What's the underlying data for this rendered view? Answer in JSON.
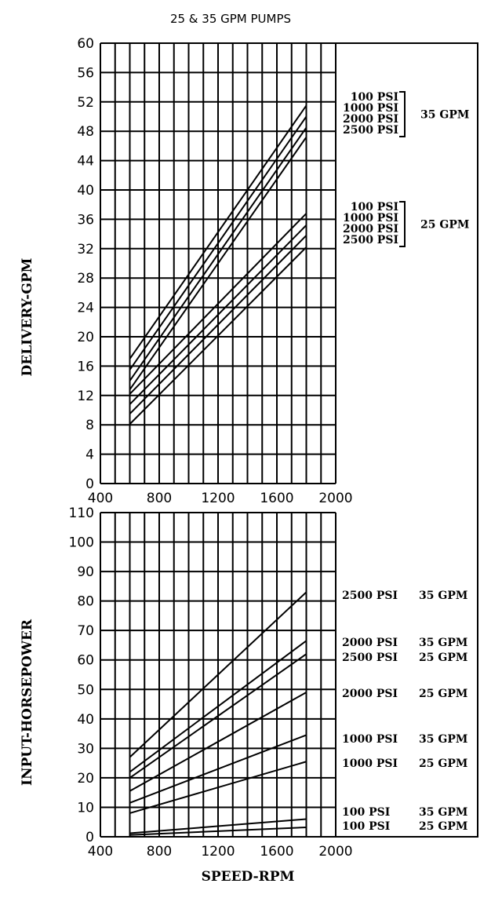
{
  "title": "25 & 35 GPM PUMPS",
  "chart_data": [
    {
      "type": "line",
      "xlabel": "",
      "ylabel": "DELIVERY-GPM",
      "xlim": [
        400,
        2000
      ],
      "ylim": [
        0,
        60
      ],
      "x_ticks": [
        "400",
        "800",
        "1200",
        "1600",
        "2000"
      ],
      "y_ticks": [
        "0",
        "4",
        "8",
        "12",
        "16",
        "20",
        "24",
        "28",
        "32",
        "36",
        "40",
        "44",
        "48",
        "52",
        "56",
        "60"
      ],
      "grid": true,
      "series": [
        {
          "x": [
            600,
            1800
          ],
          "y": [
            17,
            51.5
          ]
        },
        {
          "x": [
            600,
            1800
          ],
          "y": [
            15.5,
            50
          ]
        },
        {
          "x": [
            600,
            1800
          ],
          "y": [
            14,
            48.5
          ]
        },
        {
          "x": [
            600,
            1800
          ],
          "y": [
            12.8,
            47.2
          ]
        },
        {
          "x": [
            600,
            1800
          ],
          "y": [
            12.2,
            36.8
          ]
        },
        {
          "x": [
            600,
            1800
          ],
          "y": [
            10.8,
            35.2
          ]
        },
        {
          "x": [
            600,
            1800
          ],
          "y": [
            9.5,
            33.8
          ]
        },
        {
          "x": [
            600,
            1800
          ],
          "y": [
            8.1,
            32.2
          ]
        }
      ],
      "legend_groups": [
        {
          "labels": [
            "100 PSI",
            "1000 PSI",
            "2000 PSI",
            "2500 PSI"
          ],
          "group_label": "35 GPM"
        },
        {
          "labels": [
            "100 PSI",
            "1000 PSI",
            "2000 PSI",
            "2500 PSI"
          ],
          "group_label": "25 GPM"
        }
      ]
    },
    {
      "type": "line",
      "xlabel": "SPEED-RPM",
      "ylabel": "INPUT-HORSEPOWER",
      "xlim": [
        400,
        2000
      ],
      "ylim": [
        0,
        110
      ],
      "x_ticks": [
        "400",
        "800",
        "1200",
        "1600",
        "2000"
      ],
      "y_ticks": [
        "0",
        "10",
        "20",
        "30",
        "40",
        "50",
        "60",
        "70",
        "80",
        "90",
        "100",
        "110"
      ],
      "grid": true,
      "series": [
        {
          "x": [
            600,
            1800
          ],
          "y": [
            27,
            83
          ],
          "psi": "2500 PSI",
          "gpm": "35 GPM"
        },
        {
          "x": [
            600,
            1800
          ],
          "y": [
            22,
            66.5
          ],
          "psi": "2000 PSI",
          "gpm": "35 GPM"
        },
        {
          "x": [
            600,
            1800
          ],
          "y": [
            20,
            62
          ],
          "psi": "2500 PSI",
          "gpm": "25 GPM"
        },
        {
          "x": [
            600,
            1800
          ],
          "y": [
            15.5,
            49
          ],
          "psi": "2000 PSI",
          "gpm": "25 GPM"
        },
        {
          "x": [
            600,
            1800
          ],
          "y": [
            11.5,
            34.5
          ],
          "psi": "1000 PSI",
          "gpm": "35 GPM"
        },
        {
          "x": [
            600,
            1800
          ],
          "y": [
            8,
            25.5
          ],
          "psi": "1000 PSI",
          "gpm": "25 GPM"
        },
        {
          "x": [
            600,
            1800
          ],
          "y": [
            1.2,
            6
          ],
          "psi": "100 PSI",
          "gpm": "35 GPM"
        },
        {
          "x": [
            600,
            1800
          ],
          "y": [
            0.6,
            3.2
          ],
          "psi": "100 PSI",
          "gpm": "25 GPM"
        }
      ]
    }
  ]
}
